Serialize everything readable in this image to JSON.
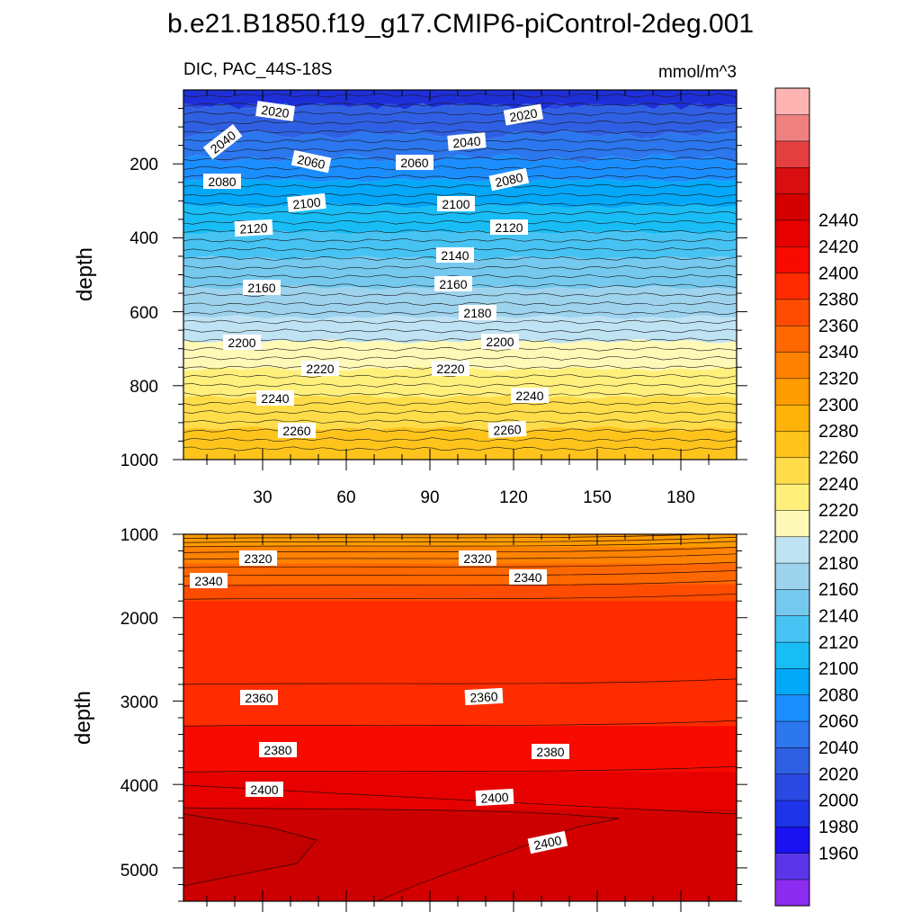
{
  "chart_data": {
    "type": "heatmap",
    "title": "b.e21.B1850.f19_g17.CMIP6-piControl-2deg.001",
    "subtitle_left": "DIC, PAC_44S-18S",
    "units": "mmol/m^3",
    "x_tick_labels": [
      "30",
      "60",
      "90",
      "120",
      "150",
      "180"
    ],
    "colorbar": {
      "levels": [
        1960,
        1980,
        2000,
        2020,
        2040,
        2060,
        2080,
        2100,
        2120,
        2140,
        2160,
        2180,
        2200,
        2220,
        2240,
        2260,
        2280,
        2300,
        2320,
        2340,
        2360,
        2380,
        2400,
        2420,
        2440
      ],
      "label_values": [
        1960,
        1980,
        2000,
        2020,
        2040,
        2060,
        2080,
        2100,
        2120,
        2140,
        2160,
        2180,
        2200,
        2220,
        2240,
        2260,
        2280,
        2300,
        2320,
        2340,
        2360,
        2380,
        2400,
        2420,
        2440
      ],
      "colors": [
        "#8c2cf0",
        "#5a36e8",
        "#1a12f0",
        "#1e34e8",
        "#2a48e2",
        "#2f60e4",
        "#2c76ee",
        "#1b8eff",
        "#04a8f8",
        "#18bdf6",
        "#47c3f3",
        "#75c9ef",
        "#9ed3ee",
        "#bfe3f3",
        "#fff9b8",
        "#fff07c",
        "#ffdd4a",
        "#ffc41c",
        "#ffb30a",
        "#ff9c00",
        "#ff8200",
        "#ff6800",
        "#ff4c00",
        "#ff2c00",
        "#f80a00",
        "#e60000",
        "#d40000",
        "#d80e10",
        "#e44040",
        "#ef8080",
        "#ffb4b4"
      ]
    },
    "panels": [
      {
        "name": "upper",
        "ylabel": "depth",
        "y_range": [
          0,
          1000
        ],
        "y_tick_labels": [
          "200",
          "400",
          "600",
          "800",
          "1000"
        ],
        "isoline_depths": [
          {
            "value": 2020,
            "depth": 40
          },
          {
            "value": 2040,
            "depth": 120
          },
          {
            "value": 2060,
            "depth": 185
          },
          {
            "value": 2080,
            "depth": 245
          },
          {
            "value": 2100,
            "depth": 315
          },
          {
            "value": 2120,
            "depth": 385
          },
          {
            "value": 2140,
            "depth": 455
          },
          {
            "value": 2160,
            "depth": 535
          },
          {
            "value": 2180,
            "depth": 615
          },
          {
            "value": 2200,
            "depth": 680
          },
          {
            "value": 2220,
            "depth": 755
          },
          {
            "value": 2240,
            "depth": 830
          },
          {
            "value": 2260,
            "depth": 915
          }
        ],
        "labels": [
          "2020",
          "2020",
          "2040",
          "2040",
          "2060",
          "2060",
          "2080",
          "2080",
          "2100",
          "2100",
          "2120",
          "2120",
          "2140",
          "2160",
          "2160",
          "2180",
          "2200",
          "2200",
          "2220",
          "2220",
          "2240",
          "2240",
          "2260",
          "2260"
        ]
      },
      {
        "name": "lower",
        "ylabel": "depth",
        "y_range": [
          1000,
          5400
        ],
        "y_tick_labels": [
          "1000",
          "2000",
          "3000",
          "4000",
          "5000"
        ],
        "labels": [
          "2320",
          "2320",
          "2340",
          "2340",
          "2360",
          "2360",
          "2380",
          "2380",
          "2400",
          "2400",
          "2400"
        ]
      }
    ]
  }
}
